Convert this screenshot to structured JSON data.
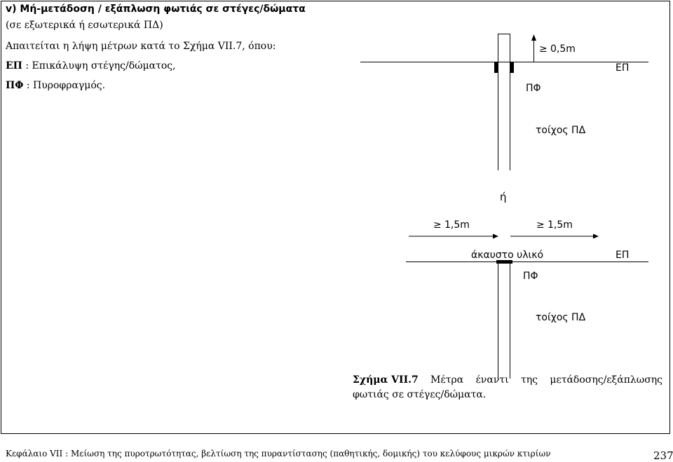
{
  "section": {
    "heading": "v) Μή-μετάδοση / εξάπλωση φωτιάς σε στέγες/δώματα",
    "subheading": "(σε εξωτερικά ή εσωτερικά ΠΔ)",
    "intro": "Απαιτείται η λήψη μέτρων κατά το Σχήμα VII.7, όπου:",
    "def1_term": "ΕΠ",
    "def1_text": " : Επικάλυψη στέγης/δώματος,",
    "def2_term": "ΠΦ",
    "def2_text": " : Πυροφραγμός."
  },
  "figure_top": {
    "distance_symbol": "≥",
    "distance": "0,5m",
    "roof_label": "ΕΠ",
    "firewall_label": "ΠΦ",
    "wall_label": "τοίχος ΠΔ"
  },
  "or_label": "ή",
  "figure_bottom": {
    "left_symbol": "≥",
    "left_distance": "1,5m",
    "right_symbol": "≥",
    "right_distance": "1,5m",
    "material_label": "άκαυστο υλικό",
    "roof_label": "ΕΠ",
    "firewall_label": "ΠΦ",
    "wall_label": "τοίχος ΠΔ"
  },
  "caption": {
    "label": "Σχήμα VII.7",
    "words": [
      "Μέτρα",
      "έναντι",
      "της",
      "μετάδοσης/εξάπλωσης"
    ],
    "line2": "φωτιάς σε στέγες/δώματα."
  },
  "footer": {
    "text": "Κεφάλαιο VII : Μείωση της πυροτρωτότητας, βελτίωση της πυραντίστασης (παθητικής, δομικής) του κελύφους μικρών κτιρίων",
    "page_number": "237"
  }
}
